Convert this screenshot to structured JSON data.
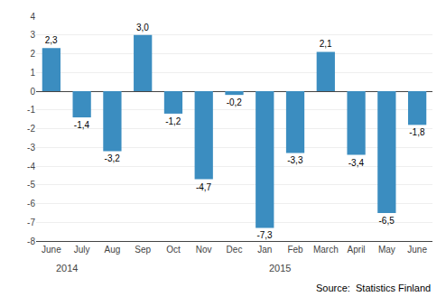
{
  "chart_data": {
    "type": "bar",
    "categories": [
      "June",
      "July",
      "Aug",
      "Sep",
      "Oct",
      "Nov",
      "Dec",
      "Jan",
      "Feb",
      "March",
      "April",
      "May",
      "June"
    ],
    "values": [
      2.3,
      -1.4,
      -3.2,
      3.0,
      -1.2,
      -4.7,
      -0.2,
      -7.3,
      -3.3,
      2.1,
      -3.4,
      -6.5,
      -1.8
    ],
    "value_labels": [
      "2,3",
      "-1,4",
      "-3,2",
      "3,0",
      "-1,2",
      "-4,7",
      "-0,2",
      "-7,3",
      "-3,3",
      "2,1",
      "-3,4",
      "-6,5",
      "-1,8"
    ],
    "data_labels": true,
    "color": "#3B8DC0",
    "ylim": [
      -8,
      4
    ],
    "yticks": [
      -8,
      -7,
      -6,
      -5,
      -4,
      -3,
      -2,
      -1,
      0,
      1,
      2,
      3,
      4
    ],
    "grid": true,
    "annotations": [
      {
        "text": "2014",
        "x": 0.5
      },
      {
        "text": "2015",
        "x": 7.5
      },
      {
        "text": "Source:  Statistics Finland"
      }
    ]
  }
}
